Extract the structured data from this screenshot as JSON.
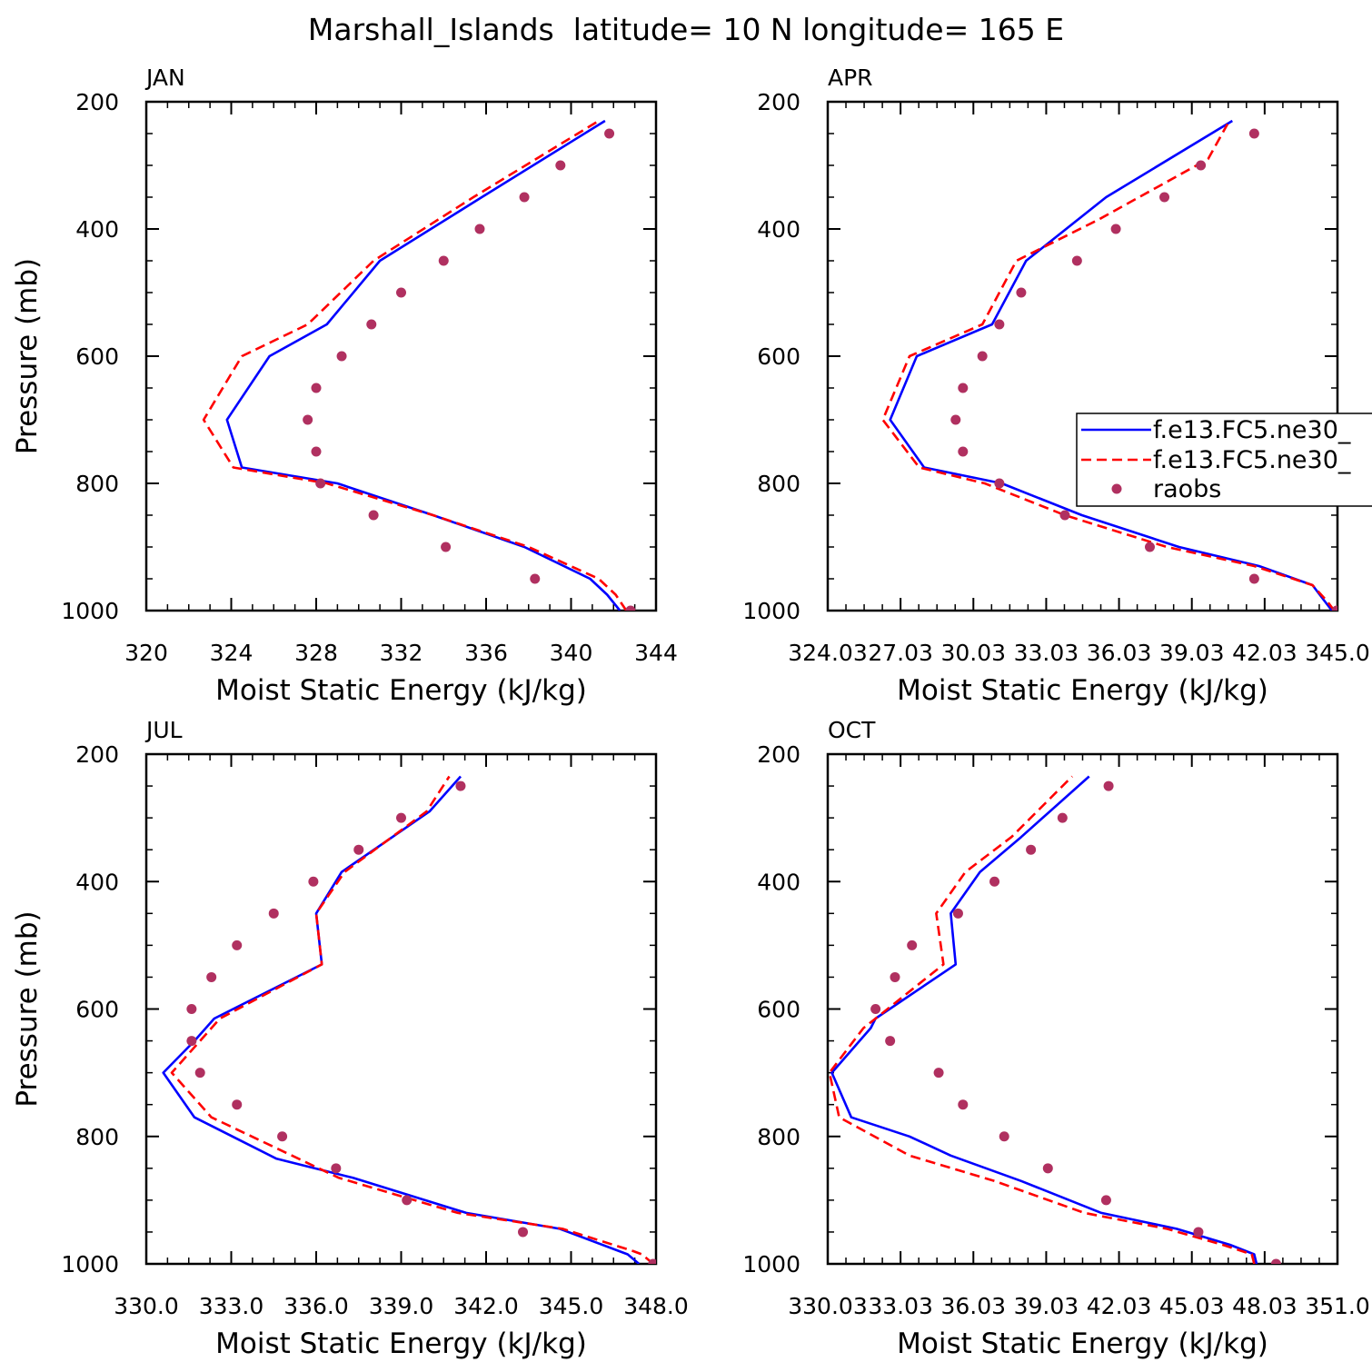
{
  "figure": {
    "title": "Marshall_Islands  latitude= 10 N longitude= 165 E",
    "colors": {
      "model1": "#0000ff",
      "model2": "#ff0000",
      "obs": "#b03060",
      "axis": "#000000"
    }
  },
  "chart_data": [
    {
      "type": "line",
      "title": "JAN",
      "xlabel": "Moist Static Energy (kJ/kg)",
      "ylabel": "Pressure (mb)",
      "xlim": [
        320,
        344
      ],
      "ylim": [
        200,
        1000
      ],
      "y_inverted": true,
      "xticks": [
        "320",
        "324",
        "328",
        "332",
        "336",
        "340",
        "344"
      ],
      "yticks": [
        "200",
        "400",
        "600",
        "800",
        "1000"
      ],
      "legend": null,
      "series": [
        {
          "name": "f.e13.FC5.ne30_",
          "style": "solid",
          "x": [
            342.3,
            341.7,
            340.9,
            337.8,
            333.5,
            329.0,
            324.5,
            323.8,
            325.8,
            328.5,
            331.0,
            335.8,
            341.6
          ],
          "y": [
            1000,
            975,
            950,
            900,
            850,
            800,
            775,
            700,
            600,
            550,
            450,
            350,
            230
          ]
        },
        {
          "name": "f.e13.FC5.ne30_",
          "style": "dashed",
          "x": [
            342.6,
            342.1,
            341.3,
            338.0,
            333.5,
            328.5,
            324.1,
            322.7,
            324.5,
            327.6,
            330.7,
            335.4,
            341.3
          ],
          "y": [
            1000,
            975,
            950,
            900,
            850,
            800,
            775,
            700,
            600,
            550,
            450,
            350,
            230
          ]
        },
        {
          "name": "raobs",
          "style": "points",
          "x": [
            342.8,
            338.3,
            334.1,
            330.7,
            328.2,
            328.0,
            327.6,
            328.0,
            329.2,
            330.6,
            332.0,
            334.0,
            335.7,
            337.8,
            339.5,
            341.8
          ],
          "y": [
            1000,
            950,
            900,
            850,
            800,
            750,
            700,
            650,
            600,
            550,
            500,
            450,
            400,
            350,
            300,
            250
          ]
        }
      ]
    },
    {
      "type": "line",
      "title": "APR",
      "xlabel": "Moist Static Energy (kJ/kg)",
      "ylabel": "",
      "xlim": [
        324.03,
        345.03
      ],
      "ylim": [
        200,
        1000
      ],
      "y_inverted": true,
      "xticks": [
        "324.03",
        "27.03",
        "30.03",
        "33.03",
        "36.03",
        "39.03",
        "42.03",
        "345.0"
      ],
      "yticks": [
        "200",
        "400",
        "600",
        "800",
        "1000"
      ],
      "legend": {
        "position": "right",
        "entries": [
          "f.e13.FC5.ne30_",
          "f.e13.FC5.ne30_",
          "raobs"
        ]
      },
      "series": [
        {
          "name": "f.e13.FC5.ne30_",
          "style": "solid",
          "x": [
            344.8,
            344.5,
            344.0,
            341.8,
            338.5,
            334.5,
            331.2,
            328.0,
            326.6,
            327.7,
            330.8,
            332.2,
            335.5,
            340.7
          ],
          "y": [
            1000,
            985,
            960,
            930,
            900,
            850,
            800,
            775,
            700,
            600,
            550,
            450,
            350,
            230
          ]
        },
        {
          "name": "f.e13.FC5.ne30_",
          "style": "dashed",
          "x": [
            344.9,
            344.6,
            344.0,
            341.6,
            338.0,
            333.8,
            330.5,
            327.8,
            326.3,
            327.4,
            330.4,
            331.8,
            335.2,
            339.7,
            340.5
          ],
          "y": [
            1000,
            985,
            960,
            930,
            900,
            850,
            800,
            775,
            700,
            600,
            550,
            450,
            385,
            290,
            235
          ]
        },
        {
          "name": "raobs",
          "style": "points",
          "x": [
            345.0,
            341.6,
            337.3,
            333.8,
            331.1,
            329.6,
            329.3,
            329.6,
            330.4,
            331.1,
            332.0,
            334.3,
            335.9,
            337.9,
            339.4,
            341.6
          ],
          "y": [
            1000,
            950,
            900,
            850,
            800,
            750,
            700,
            650,
            600,
            550,
            500,
            450,
            400,
            350,
            300,
            250
          ]
        }
      ]
    },
    {
      "type": "line",
      "title": "JUL",
      "xlabel": "Moist Static Energy (kJ/kg)",
      "ylabel": "Pressure (mb)",
      "xlim": [
        330.0,
        348.0
      ],
      "ylim": [
        200,
        1000
      ],
      "y_inverted": true,
      "xticks": [
        "330.0",
        "333.0",
        "336.0",
        "339.0",
        "342.0",
        "345.0",
        "348.0"
      ],
      "yticks": [
        "200",
        "400",
        "600",
        "800",
        "1000"
      ],
      "legend": null,
      "series": [
        {
          "name": "f.e13.FC5.ne30_",
          "style": "solid",
          "x": [
            347.4,
            347.0,
            344.6,
            341.3,
            337.3,
            334.6,
            331.7,
            330.6,
            331.7,
            332.4,
            336.2,
            336.0,
            336.9,
            340.0,
            341.1
          ],
          "y": [
            1000,
            985,
            945,
            920,
            865,
            835,
            770,
            700,
            650,
            615,
            530,
            450,
            385,
            290,
            235
          ]
        },
        {
          "name": "f.e13.FC5.ne30_",
          "style": "dashed",
          "x": [
            347.9,
            347.5,
            347.2,
            344.7,
            341.0,
            336.8,
            332.3,
            330.9,
            331.9,
            332.6,
            336.2,
            336.0,
            337.0,
            339.9,
            340.7
          ],
          "y": [
            1000,
            985,
            980,
            945,
            920,
            865,
            770,
            700,
            650,
            615,
            530,
            450,
            385,
            290,
            235
          ]
        },
        {
          "name": "raobs",
          "style": "points",
          "x": [
            347.9,
            343.3,
            339.2,
            336.7,
            334.8,
            333.2,
            331.9,
            331.6,
            331.6,
            332.3,
            333.2,
            334.5,
            335.9,
            337.5,
            339.0,
            341.1
          ],
          "y": [
            1000,
            950,
            900,
            850,
            800,
            750,
            700,
            650,
            600,
            550,
            500,
            450,
            400,
            350,
            300,
            250
          ]
        }
      ]
    },
    {
      "type": "line",
      "title": "OCT",
      "xlabel": "Moist Static Energy (kJ/kg)",
      "ylabel": "",
      "xlim": [
        330.03,
        351.03
      ],
      "ylim": [
        200,
        1000
      ],
      "y_inverted": true,
      "xticks": [
        "330.03",
        "33.03",
        "36.03",
        "39.03",
        "42.03",
        "45.03",
        "48.03",
        "351.0"
      ],
      "yticks": [
        "200",
        "400",
        "600",
        "800",
        "1000"
      ],
      "legend": null,
      "series": [
        {
          "name": "f.e13.FC5.ne30_",
          "style": "solid",
          "x": [
            347.7,
            347.6,
            346.6,
            344.4,
            341.3,
            338.0,
            335.1,
            333.4,
            331.0,
            330.2,
            331.8,
            332.0,
            335.3,
            335.1,
            336.3,
            338.0,
            340.8
          ],
          "y": [
            1000,
            985,
            970,
            945,
            920,
            870,
            830,
            800,
            770,
            700,
            630,
            615,
            530,
            450,
            385,
            330,
            235
          ]
        },
        {
          "name": "f.e13.FC5.ne30_",
          "style": "dashed",
          "x": [
            347.6,
            347.5,
            346.3,
            344.0,
            340.6,
            336.9,
            333.4,
            330.5,
            330.1,
            330.3,
            331.5,
            332.0,
            334.8,
            334.5,
            335.7,
            337.6,
            340.1
          ],
          "y": [
            1000,
            985,
            970,
            945,
            920,
            870,
            830,
            770,
            700,
            690,
            630,
            615,
            530,
            450,
            385,
            330,
            235
          ]
        },
        {
          "name": "raobs",
          "style": "points",
          "x": [
            348.5,
            345.3,
            341.5,
            339.1,
            337.3,
            335.6,
            334.6,
            332.6,
            332.0,
            332.8,
            333.5,
            335.4,
            336.9,
            338.4,
            339.7,
            341.6
          ],
          "y": [
            1000,
            950,
            900,
            850,
            800,
            750,
            700,
            650,
            600,
            550,
            500,
            450,
            400,
            350,
            300,
            250
          ]
        }
      ]
    }
  ]
}
